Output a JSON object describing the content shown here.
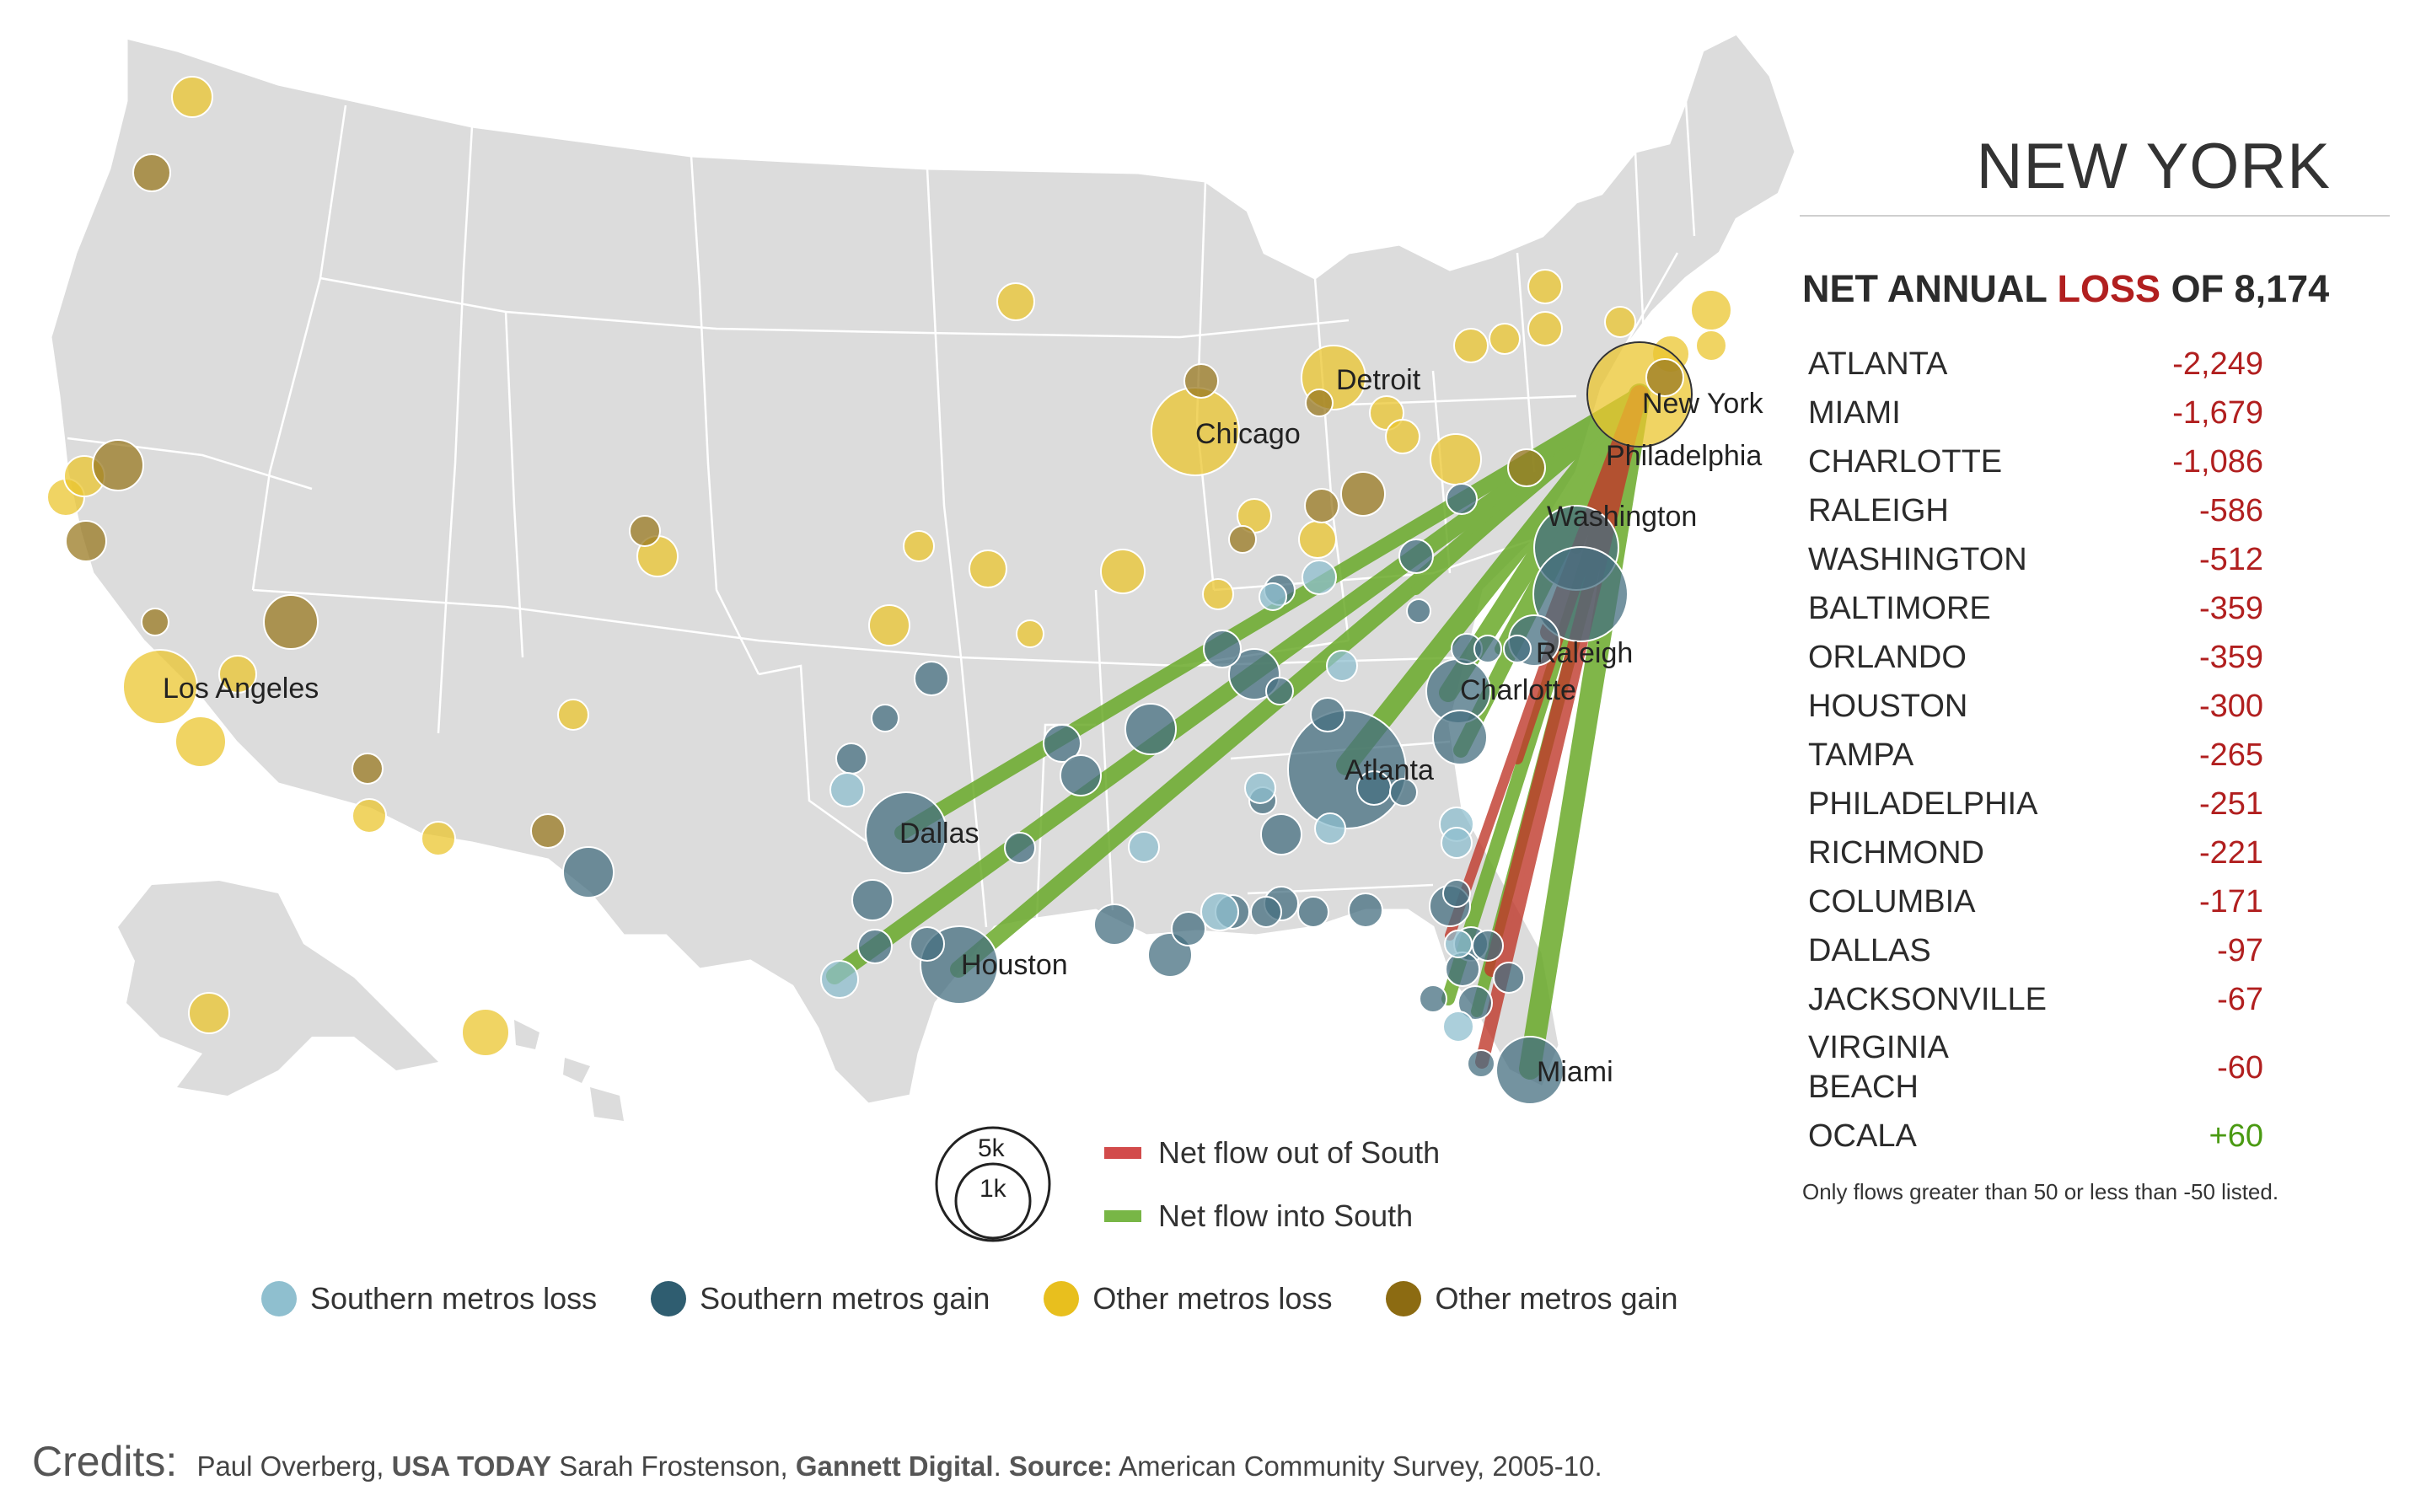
{
  "panel": {
    "title": "NEW YORK",
    "net_prefix": "NET ANNUAL",
    "net_word": "LOSS",
    "net_suffix": "OF 8,174",
    "rows": [
      {
        "city": "ATLANTA",
        "value": "-2,249"
      },
      {
        "city": "MIAMI",
        "value": "-1,679"
      },
      {
        "city": "CHARLOTTE",
        "value": "-1,086"
      },
      {
        "city": "RALEIGH",
        "value": "-586"
      },
      {
        "city": "WASHINGTON",
        "value": "-512"
      },
      {
        "city": "BALTIMORE",
        "value": "-359"
      },
      {
        "city": "ORLANDO",
        "value": "-359"
      },
      {
        "city": "HOUSTON",
        "value": "-300"
      },
      {
        "city": "TAMPA",
        "value": "-265"
      },
      {
        "city": "PHILADELPHIA",
        "value": "-251"
      },
      {
        "city": "RICHMOND",
        "value": "-221"
      },
      {
        "city": "COLUMBIA",
        "value": "-171"
      },
      {
        "city": "DALLAS",
        "value": "-97"
      },
      {
        "city": "JACKSONVILLE",
        "value": "-67"
      },
      {
        "city": "VIRGINIA BEACH",
        "value": "-60"
      },
      {
        "city": "OCALA",
        "value": "+60"
      }
    ],
    "footnote": "Only flows greater than 50 or less than -50 listed."
  },
  "map_labels": {
    "new_york": "New York",
    "philadelphia": "Philadelphia",
    "washington": "Washington",
    "raleigh": "Raleigh",
    "charlotte": "Charlotte",
    "atlanta": "Atlanta",
    "dallas": "Dallas",
    "houston": "Houston",
    "miami": "Miami",
    "chicago": "Chicago",
    "detroit": "Detroit",
    "los_angeles": "Los Angeles"
  },
  "size_legend": {
    "large": "5k",
    "small": "1k"
  },
  "flow_legend": {
    "out": "Net flow out of South",
    "in": "Net flow into South"
  },
  "legend": [
    {
      "label": "Southern metros loss",
      "color": "#8fbfcf"
    },
    {
      "label": "Southern metros gain",
      "color": "#2f5d70"
    },
    {
      "label": "Other metros loss",
      "color": "#e8bf1e"
    },
    {
      "label": "Other metros gain",
      "color": "#8c6b12"
    }
  ],
  "colors": {
    "flow_out": "#c0392b",
    "flow_in": "#6aaa2a",
    "loss": "#b11f1f",
    "gain": "#4a9a12"
  },
  "credits": {
    "label": "Credits:",
    "a1": "Paul Overberg,",
    "org1": "USA TODAY",
    "a2": "Sarah Frostenson,",
    "org2": "Gannett Digital",
    "src_label": "Source:",
    "src": "American Community Survey, 2005-10."
  }
}
